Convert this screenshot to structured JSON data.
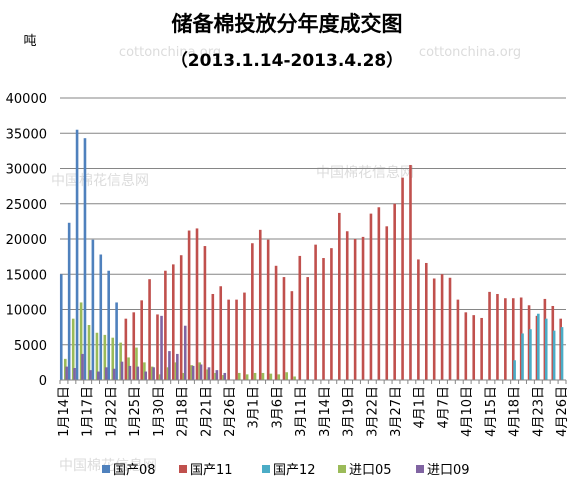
{
  "chart_data": {
    "type": "bar",
    "title": "储备棉投放分年度成交图",
    "subtitle": "（2013.1.14-2013.4.28）",
    "ylabel": "吨",
    "ylim": [
      0,
      40000
    ],
    "yticks": [
      0,
      5000,
      10000,
      15000,
      20000,
      25000,
      30000,
      35000,
      40000
    ],
    "watermarks": [
      "cottonchina.org",
      "cottonchina.org",
      "中国棉花信息网",
      "中国棉花信息网",
      "中国棉花信息网"
    ],
    "grid": true,
    "legend_position": "bottom",
    "categories": [
      "1月14日",
      "1月15日",
      "1月16日",
      "1月17日",
      "1月18日",
      "1月21日",
      "1月22日",
      "1月23日",
      "1月24日",
      "1月25日",
      "1月28日",
      "1月29日",
      "1月30日",
      "1月31日",
      "2月1日",
      "2月18日",
      "2月19日",
      "2月20日",
      "2月21日",
      "2月22日",
      "2月25日",
      "2月26日",
      "2月27日",
      "2月28日",
      "3月1日",
      "3月4日",
      "3月5日",
      "3月6日",
      "3月7日",
      "3月8日",
      "3月11日",
      "3月12日",
      "3月13日",
      "3月14日",
      "3月15日",
      "3月18日",
      "3月19日",
      "3月20日",
      "3月21日",
      "3月22日",
      "3月25日",
      "3月26日",
      "3月27日",
      "3月28日",
      "3月29日",
      "4月1日",
      "4月2日",
      "4月3日",
      "4月7日",
      "4月8日",
      "4月9日",
      "4月10日",
      "4月11日",
      "4月12日",
      "4月15日",
      "4月16日",
      "4月17日",
      "4月18日",
      "4月19日",
      "4月22日",
      "4月23日",
      "4月24日",
      "4月25日",
      "4月26日"
    ],
    "tick_labels": [
      "1月14日",
      "1月17日",
      "1月22日",
      "1月25日",
      "1月30日",
      "2月18日",
      "2月21日",
      "2月26日",
      "3月1日",
      "3月6日",
      "3月11日",
      "3月14日",
      "3月19日",
      "3月22日",
      "3月27日",
      "4月1日",
      "4月7日",
      "4月10日",
      "4月15日",
      "4月18日",
      "4月23日",
      "4月26日"
    ],
    "tick_every": 3,
    "series": [
      {
        "name": "国产08",
        "color": "#4F81BD",
        "values": [
          15000,
          22300,
          35500,
          34300,
          19900,
          17800,
          15500,
          11000,
          0,
          0,
          0,
          0,
          0,
          0,
          0,
          0,
          0,
          0,
          0,
          0,
          0,
          0,
          0,
          0,
          0,
          0,
          0,
          0,
          0,
          0,
          0,
          0,
          0,
          0,
          0,
          0,
          0,
          0,
          0,
          0,
          0,
          0,
          0,
          0,
          0,
          0,
          0,
          0,
          0,
          0,
          0,
          0,
          0,
          0,
          0,
          0,
          0,
          0,
          0,
          0,
          0,
          0,
          0,
          0
        ]
      },
      {
        "name": "国产11",
        "color": "#C0504D",
        "values": [
          0,
          0,
          0,
          0,
          0,
          0,
          0,
          0,
          8700,
          9600,
          11300,
          14300,
          9300,
          15500,
          16400,
          17700,
          21200,
          21500,
          19000,
          12200,
          13300,
          11400,
          11400,
          12400,
          19400,
          21300,
          19900,
          16200,
          14600,
          12600,
          17600,
          14600,
          19200,
          17300,
          18700,
          23700,
          21100,
          20000,
          20300,
          23600,
          24500,
          21800,
          25000,
          28700,
          30500,
          17100,
          16600,
          14400,
          15000,
          14500,
          11400,
          9600,
          9200,
          8800,
          12500,
          12200,
          11600,
          11600,
          11700,
          10600,
          9100,
          11500,
          10500,
          8700
        ]
      },
      {
        "name": "国产12",
        "color": "#4BACC6",
        "values": [
          0,
          0,
          0,
          0,
          0,
          0,
          0,
          0,
          0,
          0,
          0,
          0,
          0,
          0,
          0,
          0,
          0,
          0,
          0,
          0,
          0,
          0,
          0,
          0,
          0,
          0,
          0,
          0,
          0,
          0,
          0,
          0,
          0,
          0,
          0,
          0,
          0,
          0,
          0,
          0,
          0,
          0,
          0,
          0,
          0,
          0,
          0,
          0,
          0,
          0,
          0,
          0,
          0,
          0,
          0,
          0,
          0,
          2800,
          6600,
          7200,
          9400,
          8700,
          7000,
          7500
        ]
      },
      {
        "name": "进口05",
        "color": "#9BBB59",
        "values": [
          3000,
          8700,
          11000,
          7800,
          6700,
          6400,
          6000,
          5300,
          3200,
          4600,
          2500,
          1900,
          800,
          1800,
          2500,
          1000,
          2100,
          2500,
          1500,
          1000,
          700,
          0,
          1000,
          800,
          1000,
          1000,
          900,
          800,
          1100,
          500,
          0,
          0,
          0,
          0,
          0,
          0,
          0,
          0,
          0,
          0,
          0,
          0,
          0,
          0,
          0,
          0,
          0,
          0,
          0,
          0,
          0,
          0,
          0,
          0,
          0,
          0,
          0,
          0,
          0,
          0,
          0,
          0,
          0,
          0
        ]
      },
      {
        "name": "进口09",
        "color": "#8064A2",
        "values": [
          1900,
          1700,
          3700,
          1400,
          1200,
          1800,
          1600,
          2600,
          2000,
          1900,
          1200,
          1800,
          9100,
          4100,
          3700,
          7700,
          2000,
          2200,
          1800,
          1400,
          1000,
          0,
          0,
          0,
          0,
          0,
          0,
          0,
          0,
          0,
          0,
          0,
          0,
          0,
          0,
          0,
          0,
          0,
          0,
          0,
          0,
          0,
          0,
          0,
          0,
          0,
          0,
          0,
          0,
          0,
          0,
          0,
          0,
          0,
          0,
          0,
          0,
          0,
          0,
          0,
          0,
          0,
          0,
          0
        ]
      }
    ]
  }
}
